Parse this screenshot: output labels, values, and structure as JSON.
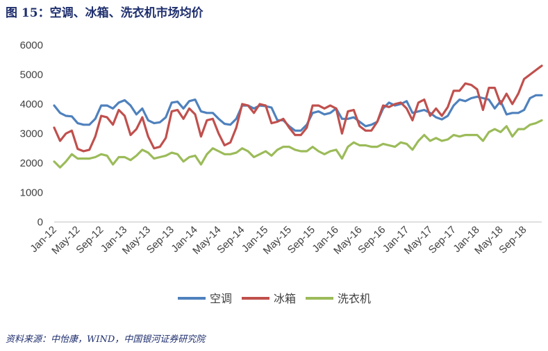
{
  "figure": {
    "title": "图 15：空调、冰箱、洗衣机市场均价",
    "source": "资料来源：中怡康，WIND，中国银河证券研究院"
  },
  "chart_data": {
    "type": "line",
    "ylim": [
      0,
      6000
    ],
    "yticks": [
      0,
      1000,
      2000,
      3000,
      4000,
      5000,
      6000
    ],
    "x": [
      "2012-01",
      "2012-02",
      "2012-03",
      "2012-04",
      "2012-05",
      "2012-06",
      "2012-07",
      "2012-08",
      "2012-09",
      "2012-10",
      "2012-11",
      "2012-12",
      "2013-01",
      "2013-02",
      "2013-03",
      "2013-04",
      "2013-05",
      "2013-06",
      "2013-07",
      "2013-08",
      "2013-09",
      "2013-10",
      "2013-11",
      "2013-12",
      "2014-01",
      "2014-02",
      "2014-03",
      "2014-04",
      "2014-05",
      "2014-06",
      "2014-07",
      "2014-08",
      "2014-09",
      "2014-10",
      "2014-11",
      "2014-12",
      "2015-01",
      "2015-02",
      "2015-03",
      "2015-04",
      "2015-05",
      "2015-06",
      "2015-07",
      "2015-08",
      "2015-09",
      "2015-10",
      "2015-11",
      "2015-12",
      "2016-01",
      "2016-02",
      "2016-03",
      "2016-04",
      "2016-05",
      "2016-06",
      "2016-07",
      "2016-08",
      "2016-09",
      "2016-10",
      "2016-11",
      "2016-12",
      "2017-01",
      "2017-02",
      "2017-03",
      "2017-04",
      "2017-05",
      "2017-06",
      "2017-07",
      "2017-08",
      "2017-09",
      "2017-10",
      "2017-11",
      "2017-12",
      "2018-01",
      "2018-02",
      "2018-03",
      "2018-04",
      "2018-05",
      "2018-06",
      "2018-07",
      "2018-08",
      "2018-09",
      "2018-10",
      "2018-11",
      "2018-12"
    ],
    "x_tick_labels": [
      "Jan-12",
      "May-12",
      "Sep-12",
      "Jan-13",
      "May-13",
      "Sep-13",
      "Jan-14",
      "May-14",
      "Sep-14",
      "Jan-15",
      "May-15",
      "Sep-15",
      "Jan-16",
      "May-16",
      "Sep-16",
      "Jan-17",
      "May-17",
      "Sep-17",
      "Jan-18",
      "May-18",
      "Sep-18"
    ],
    "x_tick_step": 4,
    "legend": {
      "position": "bottom"
    },
    "series": [
      {
        "name": "空调",
        "color": "#4f81bd",
        "values": [
          3950,
          3700,
          3600,
          3580,
          3350,
          3300,
          3300,
          3500,
          3950,
          3950,
          3850,
          4050,
          4130,
          3950,
          3650,
          3850,
          3450,
          3350,
          3380,
          3550,
          4050,
          4080,
          3850,
          4100,
          4150,
          3750,
          3700,
          3700,
          3500,
          3330,
          3300,
          3500,
          3950,
          3950,
          3850,
          3950,
          3930,
          3880,
          3450,
          3450,
          3250,
          3100,
          3100,
          3300,
          3700,
          3750,
          3650,
          3700,
          3850,
          3500,
          3500,
          3550,
          3400,
          3250,
          3300,
          3400,
          3850,
          4050,
          3950,
          4000,
          4100,
          3700,
          3750,
          3800,
          3700,
          3550,
          3480,
          3600,
          3950,
          4150,
          4100,
          4200,
          4250,
          4200,
          4150,
          3850,
          4100,
          3650,
          3700,
          3700,
          3800,
          4200,
          4300,
          4300
        ]
      },
      {
        "name": "冰箱",
        "color": "#c0504d",
        "values": [
          3200,
          2750,
          3000,
          3100,
          2480,
          2400,
          2450,
          2900,
          3600,
          3550,
          3300,
          3800,
          3600,
          2950,
          3150,
          3550,
          2900,
          2500,
          2550,
          2850,
          3750,
          3800,
          3500,
          3850,
          3650,
          2900,
          3450,
          3500,
          3000,
          2600,
          2700,
          3200,
          4000,
          3950,
          3700,
          4000,
          3950,
          3350,
          3400,
          3500,
          3200,
          2950,
          2950,
          3200,
          3950,
          3950,
          3850,
          3950,
          3850,
          3000,
          3750,
          3800,
          3250,
          3100,
          3100,
          3400,
          3950,
          3900,
          4000,
          4050,
          3850,
          3450,
          4050,
          4150,
          3600,
          3850,
          3600,
          3900,
          4450,
          4450,
          4700,
          4650,
          4500,
          3800,
          4550,
          4550,
          4000,
          4350,
          4000,
          4350,
          4850,
          5000,
          5150,
          5300
        ]
      },
      {
        "name": "洗衣机",
        "color": "#9bbb59",
        "values": [
          2050,
          1850,
          2050,
          2300,
          2150,
          2150,
          2150,
          2200,
          2300,
          2250,
          1950,
          2200,
          2200,
          2100,
          2250,
          2450,
          2350,
          2150,
          2200,
          2250,
          2350,
          2300,
          2050,
          2200,
          2250,
          1950,
          2300,
          2500,
          2400,
          2300,
          2300,
          2350,
          2500,
          2400,
          2200,
          2300,
          2400,
          2250,
          2450,
          2550,
          2550,
          2450,
          2400,
          2400,
          2550,
          2400,
          2300,
          2400,
          2450,
          2150,
          2550,
          2700,
          2600,
          2600,
          2550,
          2550,
          2650,
          2600,
          2550,
          2700,
          2650,
          2450,
          2750,
          2950,
          2750,
          2850,
          2750,
          2800,
          2950,
          2900,
          2950,
          2950,
          2950,
          2750,
          3050,
          3150,
          3050,
          3250,
          2900,
          3150,
          3150,
          3300,
          3350,
          3450
        ]
      }
    ]
  }
}
